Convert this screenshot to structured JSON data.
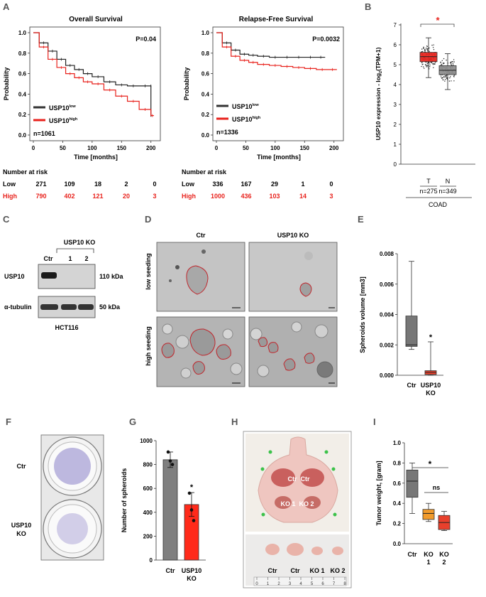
{
  "panels": {
    "a": {
      "label": "A",
      "os": {
        "title": "Overall Survival",
        "p": "P=0.04",
        "ylabel": "Probability",
        "xlabel": "Time [months]",
        "yticks": [
          "1.0",
          "0.8",
          "0.6",
          "0.4",
          "0.2",
          "0.0"
        ],
        "xticks": [
          "0",
          "50",
          "100",
          "150",
          "200"
        ],
        "legend_low": "USP10",
        "legend_low_sup": "low",
        "legend_high": "USP10",
        "legend_high_sup": "high",
        "n": "n=1061",
        "risk_title": "Number at risk",
        "risk_low_label": "Low",
        "risk_high_label": "High",
        "risk_low": [
          "271",
          "109",
          "18",
          "2",
          "0"
        ],
        "risk_high": [
          "790",
          "402",
          "121",
          "20",
          "3"
        ]
      },
      "rfs": {
        "title": "Relapse-Free Survival",
        "p": "P=0.0032",
        "ylabel": "Probability",
        "xlabel": "Time [months]",
        "yticks": [
          "1.0",
          "0.8",
          "0.6",
          "0.4",
          "0.2",
          "0.0"
        ],
        "xticks": [
          "0",
          "50",
          "100",
          "150",
          "200"
        ],
        "legend_low": "USP10",
        "legend_low_sup": "low",
        "legend_high": "USP10",
        "legend_high_sup": "high",
        "n": "n=1336",
        "risk_title": "Number at risk",
        "risk_low_label": "Low",
        "risk_high_label": "High",
        "risk_low": [
          "336",
          "167",
          "29",
          "1",
          "0"
        ],
        "risk_high": [
          "1000",
          "436",
          "103",
          "14",
          "3"
        ]
      }
    },
    "b": {
      "label": "B",
      "ylabel": "USP10 expression - log",
      "ylabel_sub": "2",
      "ylabel_end": "(TPM+1)",
      "yticks": [
        "7",
        "6",
        "5",
        "4",
        "3",
        "2",
        "1",
        "0"
      ],
      "t_label": "T",
      "n_label": "N",
      "t_n": "n=275",
      "n_n": "n=349",
      "xlabel": "COAD",
      "sig": "*"
    },
    "c": {
      "label": "C",
      "group": "USP10 KO",
      "lanes": [
        "Ctr",
        "1",
        "2"
      ],
      "rows": [
        "USP10",
        "α-tubulin"
      ],
      "kda": [
        "110 kDa",
        "50 kDa"
      ],
      "cell_line": "HCT116"
    },
    "d": {
      "label": "D",
      "cols": [
        "Ctr",
        "USP10 KO"
      ],
      "rows": [
        "low seeding",
        "high seeding"
      ]
    },
    "e": {
      "label": "E",
      "ylabel": "Spheroids volume [mm3]",
      "yticks": [
        "0.008",
        "0.006",
        "0.004",
        "0.002",
        "0.000"
      ],
      "x1": "Ctr",
      "x2a": "USP10",
      "x2b": "KO",
      "sig": "*"
    },
    "f": {
      "label": "F",
      "row1": "Ctr",
      "row2a": "USP10",
      "row2b": "KO"
    },
    "g": {
      "label": "G",
      "ylabel": "Number of spheroids",
      "yticks": [
        "1000",
        "800",
        "600",
        "400",
        "200",
        "0"
      ],
      "x1": "Ctr",
      "x2a": "USP10",
      "x2b": "KO",
      "sig": "*"
    },
    "h": {
      "label": "H",
      "mouse_labels": [
        "Ctr",
        "Ctr",
        "KO 1",
        "KO 2"
      ],
      "tumor_labels": [
        "Ctr",
        "Ctr",
        "KO 1",
        "KO 2"
      ],
      "ruler": [
        "0",
        "1",
        "2",
        "3",
        "4",
        "5",
        "6",
        "7",
        "8"
      ]
    },
    "i": {
      "label": "I",
      "ylabel": "Tumor weight, [gram]",
      "yticks": [
        "1.0",
        "0.8",
        "0.6",
        "0.4",
        "0.2",
        "0.0"
      ],
      "x1": "Ctr",
      "x2a": "KO",
      "x2b": "1",
      "x3a": "KO",
      "x3b": "2",
      "sig": "*",
      "ns": "ns"
    }
  },
  "chart_data": [
    {
      "type": "line",
      "title": "Overall Survival",
      "xlabel": "Time [months]",
      "ylabel": "Probability",
      "xlim": [
        0,
        210
      ],
      "ylim": [
        0,
        1
      ],
      "series": [
        {
          "name": "USP10 low",
          "color": "#222222",
          "x": [
            0,
            10,
            25,
            40,
            55,
            70,
            85,
            100,
            120,
            140,
            160,
            180,
            200,
            200
          ],
          "y": [
            1.0,
            0.9,
            0.82,
            0.74,
            0.68,
            0.64,
            0.6,
            0.57,
            0.52,
            0.49,
            0.48,
            0.48,
            0.48,
            0.18
          ]
        },
        {
          "name": "USP10 high",
          "color": "#e8221c",
          "x": [
            0,
            10,
            25,
            40,
            55,
            70,
            85,
            100,
            120,
            140,
            160,
            180,
            200,
            205
          ],
          "y": [
            1.0,
            0.86,
            0.74,
            0.66,
            0.6,
            0.56,
            0.52,
            0.5,
            0.44,
            0.38,
            0.33,
            0.25,
            0.19,
            0.19
          ]
        }
      ]
    },
    {
      "type": "line",
      "title": "Relapse-Free Survival",
      "xlabel": "Time [months]",
      "ylabel": "Probability",
      "xlim": [
        0,
        210
      ],
      "ylim": [
        0,
        1
      ],
      "series": [
        {
          "name": "USP10 low",
          "color": "#222222",
          "x": [
            0,
            10,
            25,
            40,
            55,
            70,
            90,
            110,
            130,
            150,
            170,
            185
          ],
          "y": [
            1.0,
            0.9,
            0.83,
            0.79,
            0.78,
            0.77,
            0.76,
            0.76,
            0.76,
            0.76,
            0.76,
            0.76
          ]
        },
        {
          "name": "USP10 high",
          "color": "#e8221c",
          "x": [
            0,
            10,
            25,
            40,
            55,
            70,
            90,
            110,
            130,
            150,
            170,
            190,
            205
          ],
          "y": [
            1.0,
            0.86,
            0.77,
            0.73,
            0.71,
            0.69,
            0.68,
            0.67,
            0.66,
            0.65,
            0.64,
            0.64,
            0.64
          ]
        }
      ]
    },
    {
      "type": "box",
      "title": "USP10 expression COAD",
      "ylabel": "USP10 expression - log2(TPM+1)",
      "ylim": [
        0,
        7
      ],
      "series": [
        {
          "name": "T",
          "color": "#e8221c",
          "min": 4.35,
          "q1": 5.15,
          "median": 5.4,
          "q3": 5.62,
          "max": 6.35
        },
        {
          "name": "N",
          "color": "#8d8d8d",
          "min": 3.75,
          "q1": 4.5,
          "median": 4.72,
          "q3": 4.95,
          "max": 5.55
        }
      ]
    },
    {
      "type": "box",
      "title": "Spheroids volume",
      "ylabel": "Spheroids volume [mm3]",
      "ylim": [
        0,
        0.008
      ],
      "series": [
        {
          "name": "Ctr",
          "color": "#777777",
          "min": 0.0017,
          "q1": 0.0019,
          "median": 0.002,
          "q3": 0.0039,
          "max": 0.0075
        },
        {
          "name": "USP10 KO",
          "color": "#e8402c",
          "min": 0.0,
          "q1": 5e-05,
          "median": 0.0002,
          "q3": 0.0003,
          "max": 0.0022
        }
      ]
    },
    {
      "type": "bar",
      "title": "Number of spheroids",
      "ylabel": "Number of spheroids",
      "ylim": [
        0,
        1000
      ],
      "categories": [
        "Ctr",
        "USP10 KO"
      ],
      "values": [
        840,
        465
      ],
      "errors": [
        65,
        100
      ],
      "colors": [
        "#7f7f7f",
        "#ff2a1a"
      ],
      "points": [
        [
          905,
          830,
          800
        ],
        [
          560,
          420,
          330
        ]
      ]
    },
    {
      "type": "box",
      "title": "Tumor weight",
      "ylabel": "Tumor weight, [gram]",
      "ylim": [
        0,
        1.0
      ],
      "series": [
        {
          "name": "Ctr",
          "color": "#777777",
          "min": 0.3,
          "q1": 0.46,
          "median": 0.62,
          "q3": 0.73,
          "max": 0.8
        },
        {
          "name": "KO 1",
          "color": "#f19b2c",
          "min": 0.22,
          "q1": 0.24,
          "median": 0.3,
          "q3": 0.34,
          "max": 0.4
        },
        {
          "name": "KO 2",
          "color": "#e8402c",
          "min": 0.13,
          "q1": 0.14,
          "median": 0.21,
          "q3": 0.28,
          "max": 0.32
        }
      ]
    }
  ]
}
